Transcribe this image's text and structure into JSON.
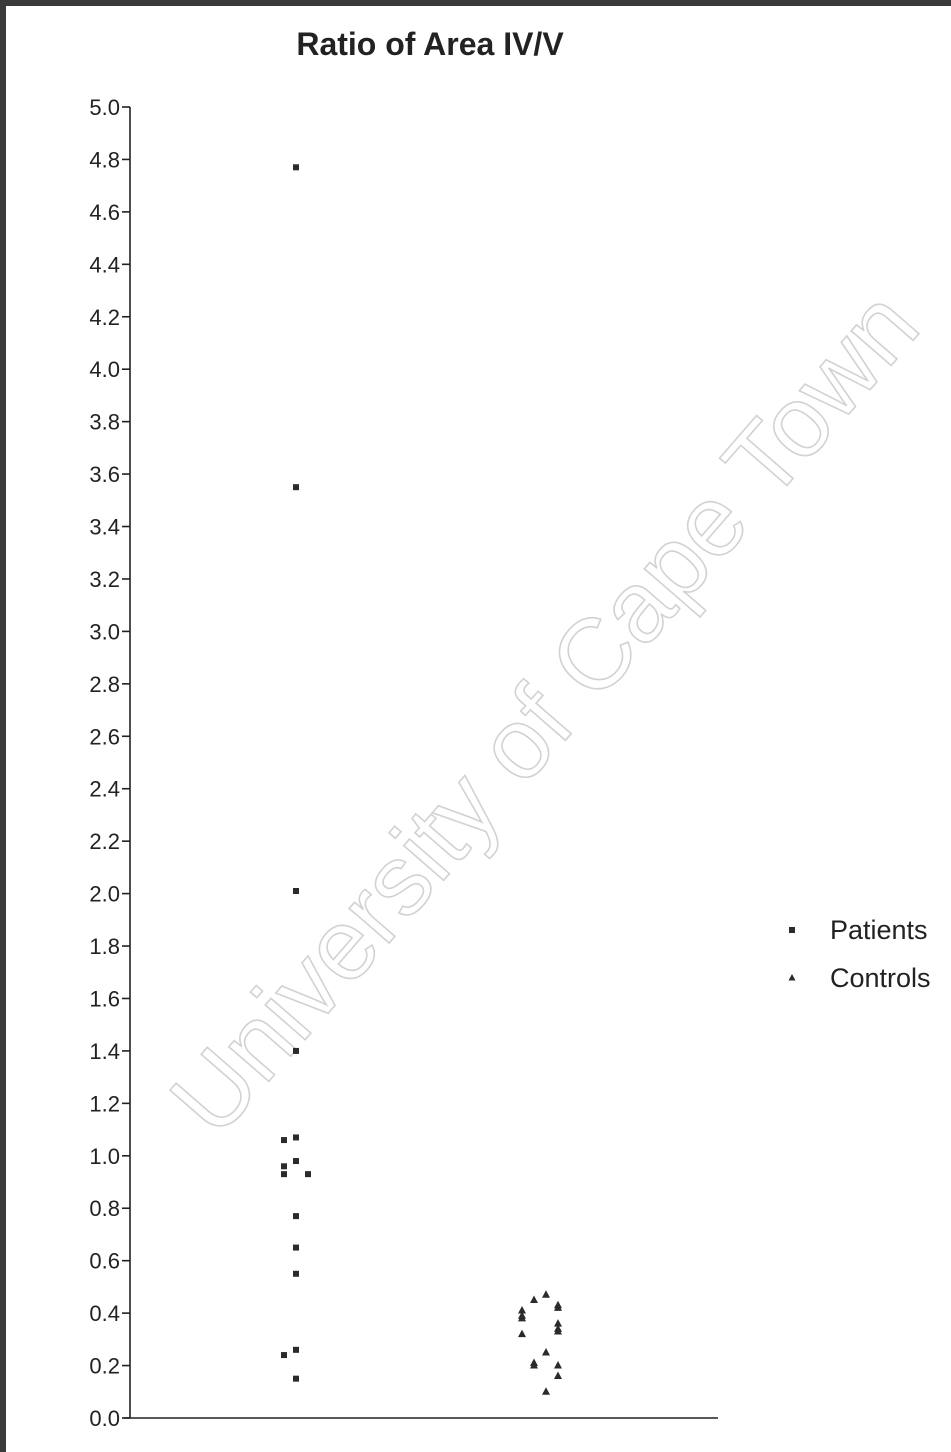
{
  "chart_data": {
    "type": "scatter",
    "title": "Ratio of Area IV/V",
    "xlabel": "",
    "ylabel": "",
    "ylim": [
      0.0,
      5.0
    ],
    "yticks": [
      "0.0",
      "0.2",
      "0.4",
      "0.6",
      "0.8",
      "1.0",
      "1.2",
      "1.4",
      "1.6",
      "1.8",
      "2.0",
      "2.2",
      "2.4",
      "2.6",
      "2.8",
      "3.0",
      "3.2",
      "3.4",
      "3.6",
      "3.8",
      "4.0",
      "4.2",
      "4.4",
      "4.6",
      "4.8",
      "5.0"
    ],
    "legend_position": "right",
    "grid": false,
    "series": [
      {
        "name": "Patients",
        "marker": "square",
        "color": "#2b2b2b",
        "values": [
          4.77,
          3.55,
          2.01,
          1.4,
          1.07,
          1.06,
          0.98,
          0.96,
          0.93,
          0.93,
          0.77,
          0.65,
          0.55,
          0.26,
          0.24,
          0.15
        ]
      },
      {
        "name": "Controls",
        "marker": "triangle",
        "color": "#2b2b2b",
        "values": [
          0.47,
          0.45,
          0.43,
          0.42,
          0.41,
          0.39,
          0.38,
          0.36,
          0.34,
          0.33,
          0.32,
          0.25,
          0.21,
          0.2,
          0.2,
          0.16,
          0.1
        ]
      }
    ]
  },
  "watermark": "University of Cape Town"
}
